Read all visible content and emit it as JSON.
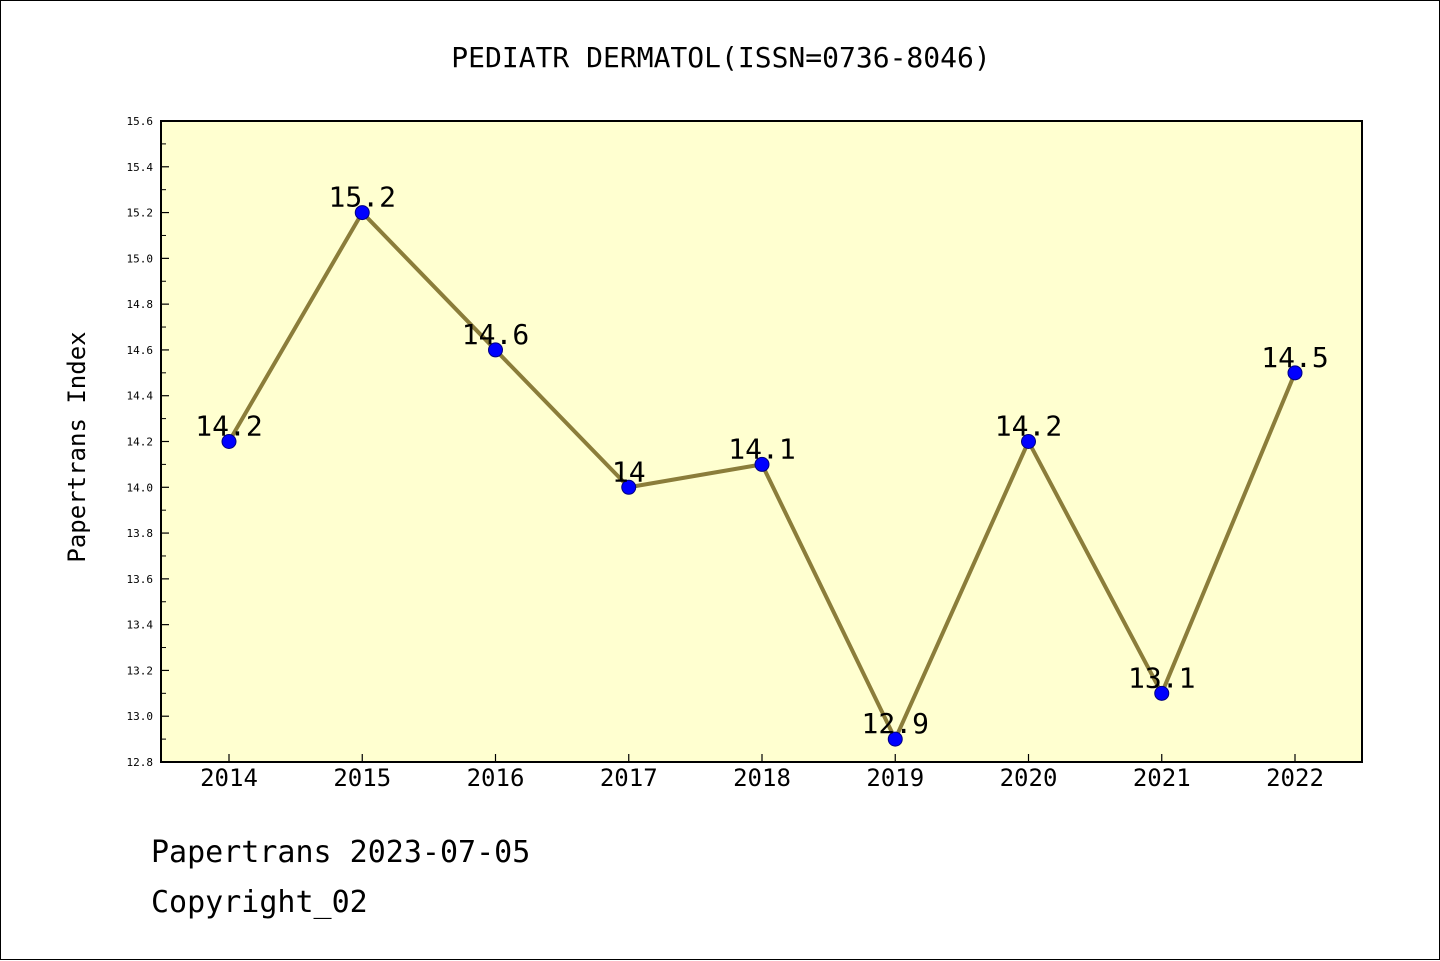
{
  "chart_data": {
    "type": "line",
    "title": "PEDIATR DERMATOL(ISSN=0736-8046)",
    "xlabel": "",
    "ylabel": "Papertrans Index",
    "categories": [
      "2014",
      "2015",
      "2016",
      "2017",
      "2018",
      "2019",
      "2020",
      "2021",
      "2022"
    ],
    "values": [
      14.2,
      15.2,
      14.6,
      14.0,
      14.1,
      12.9,
      14.2,
      13.1,
      14.5
    ],
    "data_labels": [
      "14.2",
      "15.2",
      "14.6",
      "14",
      "14.1",
      "12.9",
      "14.2",
      "13.1",
      "14.5"
    ],
    "ylim": [
      12.8,
      15.6
    ],
    "yticks": [
      "12.8",
      "13.0",
      "13.2",
      "13.4",
      "13.6",
      "13.8",
      "14.0",
      "14.2",
      "14.4",
      "14.6",
      "14.8",
      "15.0",
      "15.2",
      "15.4",
      "15.6"
    ],
    "grid": false,
    "legend": "none",
    "colors": {
      "plot_background": "#FFFFD0",
      "line": "#8B7D3A",
      "marker_fill": "#0000FF",
      "marker_edge": "#000080"
    }
  },
  "footer": {
    "line1": "Papertrans 2023-07-05",
    "line2": "Copyright_02"
  }
}
